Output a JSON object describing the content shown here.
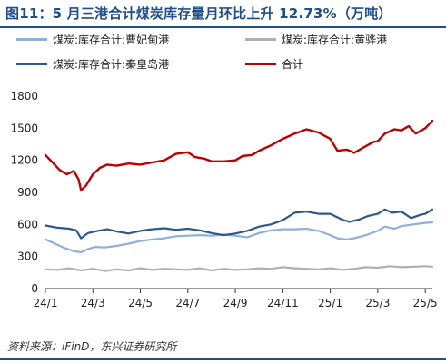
{
  "title": "图11：5 月三港合计煤炭库存量月环比上升 12.73%（万吨）",
  "source": "资料来源：iFinD，东兴证券研究所",
  "chart_data": {
    "type": "line",
    "x_tick_labels": [
      "24/1",
      "24/3",
      "24/5",
      "24/7",
      "24/9",
      "24/11",
      "25/1",
      "25/3",
      "25/5"
    ],
    "x_tick_months": [
      0,
      2,
      4,
      6,
      8,
      10,
      12,
      14,
      16
    ],
    "x_range_months": [
      0,
      16.3
    ],
    "ylim": [
      0,
      1800
    ],
    "y_ticks": [
      0,
      300,
      600,
      900,
      1200,
      1500,
      1800
    ],
    "legend_position": "top",
    "series": [
      {
        "name": "煤炭:库存合计:曹妃甸港",
        "color": "#8fb0dc",
        "points": [
          [
            0,
            460
          ],
          [
            0.4,
            420
          ],
          [
            0.8,
            380
          ],
          [
            1.2,
            350
          ],
          [
            1.5,
            340
          ],
          [
            1.8,
            370
          ],
          [
            2.1,
            390
          ],
          [
            2.5,
            385
          ],
          [
            3.0,
            400
          ],
          [
            3.5,
            420
          ],
          [
            4.0,
            445
          ],
          [
            4.5,
            460
          ],
          [
            5.0,
            470
          ],
          [
            5.5,
            490
          ],
          [
            6.0,
            495
          ],
          [
            6.5,
            500
          ],
          [
            7.0,
            495
          ],
          [
            7.5,
            505
          ],
          [
            8.0,
            495
          ],
          [
            8.5,
            480
          ],
          [
            9.0,
            520
          ],
          [
            9.5,
            545
          ],
          [
            10.0,
            555
          ],
          [
            10.5,
            555
          ],
          [
            11.0,
            560
          ],
          [
            11.5,
            540
          ],
          [
            12.0,
            500
          ],
          [
            12.3,
            470
          ],
          [
            12.7,
            460
          ],
          [
            13.0,
            470
          ],
          [
            13.5,
            500
          ],
          [
            14.0,
            540
          ],
          [
            14.3,
            580
          ],
          [
            14.7,
            560
          ],
          [
            15.0,
            585
          ],
          [
            15.5,
            600
          ],
          [
            16.0,
            615
          ],
          [
            16.3,
            620
          ]
        ]
      },
      {
        "name": "煤炭:库存合计:黄骅港",
        "color": "#b0b0b0",
        "points": [
          [
            0,
            180
          ],
          [
            0.5,
            175
          ],
          [
            1.0,
            190
          ],
          [
            1.5,
            170
          ],
          [
            2.0,
            185
          ],
          [
            2.5,
            165
          ],
          [
            3.0,
            180
          ],
          [
            3.5,
            170
          ],
          [
            4.0,
            190
          ],
          [
            4.5,
            175
          ],
          [
            5.0,
            185
          ],
          [
            5.5,
            180
          ],
          [
            6.0,
            175
          ],
          [
            6.5,
            190
          ],
          [
            7.0,
            170
          ],
          [
            7.5,
            185
          ],
          [
            8.0,
            175
          ],
          [
            8.5,
            180
          ],
          [
            9.0,
            190
          ],
          [
            9.5,
            185
          ],
          [
            10.0,
            200
          ],
          [
            10.5,
            190
          ],
          [
            11.0,
            185
          ],
          [
            11.5,
            180
          ],
          [
            12.0,
            190
          ],
          [
            12.5,
            175
          ],
          [
            13.0,
            185
          ],
          [
            13.5,
            200
          ],
          [
            14.0,
            195
          ],
          [
            14.5,
            210
          ],
          [
            15.0,
            200
          ],
          [
            15.5,
            205
          ],
          [
            16.0,
            210
          ],
          [
            16.3,
            205
          ]
        ]
      },
      {
        "name": "煤炭:库存合计:秦皇岛港",
        "color": "#2e5894",
        "points": [
          [
            0,
            590
          ],
          [
            0.5,
            570
          ],
          [
            1.0,
            560
          ],
          [
            1.3,
            545
          ],
          [
            1.5,
            470
          ],
          [
            1.8,
            520
          ],
          [
            2.2,
            540
          ],
          [
            2.6,
            555
          ],
          [
            3.0,
            535
          ],
          [
            3.5,
            515
          ],
          [
            4.0,
            540
          ],
          [
            4.5,
            555
          ],
          [
            5.0,
            565
          ],
          [
            5.5,
            550
          ],
          [
            6.0,
            560
          ],
          [
            6.5,
            545
          ],
          [
            7.0,
            520
          ],
          [
            7.5,
            500
          ],
          [
            8.0,
            515
          ],
          [
            8.5,
            540
          ],
          [
            9.0,
            580
          ],
          [
            9.5,
            600
          ],
          [
            10.0,
            640
          ],
          [
            10.5,
            710
          ],
          [
            11.0,
            720
          ],
          [
            11.5,
            700
          ],
          [
            12.0,
            700
          ],
          [
            12.5,
            645
          ],
          [
            12.8,
            625
          ],
          [
            13.2,
            645
          ],
          [
            13.6,
            680
          ],
          [
            14.0,
            700
          ],
          [
            14.3,
            740
          ],
          [
            14.6,
            710
          ],
          [
            15.0,
            720
          ],
          [
            15.4,
            660
          ],
          [
            15.8,
            690
          ],
          [
            16.0,
            700
          ],
          [
            16.3,
            740
          ]
        ]
      },
      {
        "name": "合计",
        "color": "#c00000",
        "points": [
          [
            0,
            1250
          ],
          [
            0.3,
            1180
          ],
          [
            0.6,
            1110
          ],
          [
            0.9,
            1070
          ],
          [
            1.2,
            1100
          ],
          [
            1.4,
            1020
          ],
          [
            1.5,
            920
          ],
          [
            1.7,
            960
          ],
          [
            2.0,
            1070
          ],
          [
            2.3,
            1130
          ],
          [
            2.6,
            1160
          ],
          [
            3.0,
            1150
          ],
          [
            3.5,
            1170
          ],
          [
            4.0,
            1160
          ],
          [
            4.5,
            1180
          ],
          [
            5.0,
            1200
          ],
          [
            5.5,
            1260
          ],
          [
            6.0,
            1275
          ],
          [
            6.3,
            1230
          ],
          [
            6.7,
            1215
          ],
          [
            7.0,
            1190
          ],
          [
            7.5,
            1190
          ],
          [
            8.0,
            1200
          ],
          [
            8.3,
            1240
          ],
          [
            8.7,
            1250
          ],
          [
            9.0,
            1290
          ],
          [
            9.5,
            1340
          ],
          [
            10.0,
            1400
          ],
          [
            10.5,
            1450
          ],
          [
            11.0,
            1490
          ],
          [
            11.5,
            1460
          ],
          [
            12.0,
            1400
          ],
          [
            12.3,
            1290
          ],
          [
            12.7,
            1300
          ],
          [
            13.0,
            1270
          ],
          [
            13.4,
            1320
          ],
          [
            13.8,
            1370
          ],
          [
            14.0,
            1380
          ],
          [
            14.3,
            1450
          ],
          [
            14.7,
            1490
          ],
          [
            15.0,
            1480
          ],
          [
            15.3,
            1520
          ],
          [
            15.6,
            1450
          ],
          [
            16.0,
            1500
          ],
          [
            16.3,
            1570
          ]
        ]
      }
    ]
  }
}
